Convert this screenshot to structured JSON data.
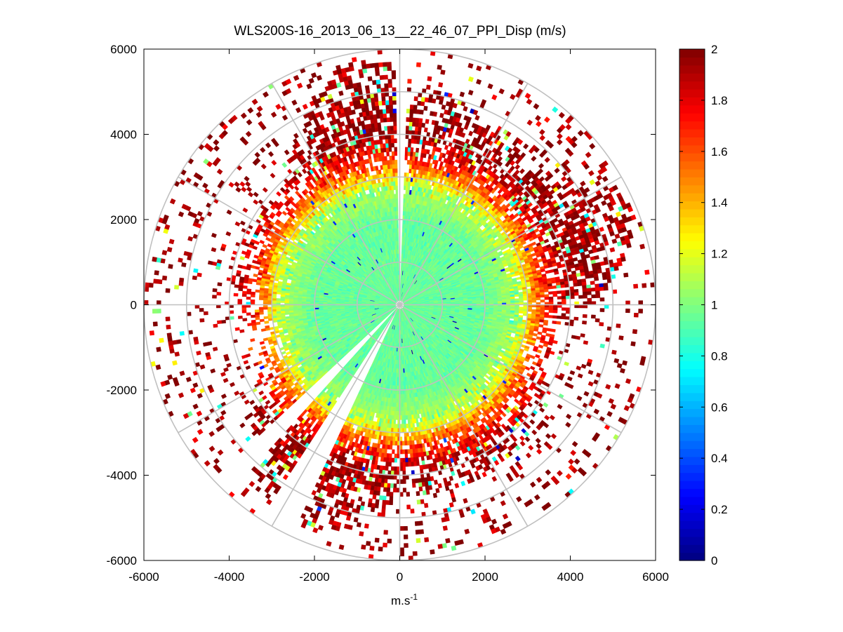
{
  "figure": {
    "title": "WLS200S-16_2013_06_13__22_46_07_PPI_Disp (m/s)",
    "xlabel_base": "m.s",
    "xlabel_exp": "-1"
  },
  "chart_data": {
    "type": "heatmap",
    "subtype": "polar-ppi",
    "title": "WLS200S-16_2013_06_13__22_46_07_PPI_Disp (m/s)",
    "xlabel": "m.s^-1",
    "ylabel": "",
    "xlim": [
      -6000,
      6000
    ],
    "ylim": [
      -6000,
      6000
    ],
    "x_ticks": [
      -6000,
      -4000,
      -2000,
      0,
      2000,
      4000,
      6000
    ],
    "y_ticks": [
      6000,
      4000,
      2000,
      0,
      -2000,
      -4000,
      -6000
    ],
    "x_tick_labels": [
      "-6000",
      "-4000",
      "-2000",
      "0",
      "2000",
      "4000",
      "6000"
    ],
    "y_tick_labels": [
      "6000",
      "4000",
      "2000",
      "0",
      "-2000",
      "-4000",
      "-6000"
    ],
    "max_range": 6000,
    "range_rings": [
      1000,
      2000,
      3000,
      4000,
      5000,
      6000
    ],
    "spokes_deg": [
      0,
      30,
      60,
      90,
      120,
      150,
      180,
      210,
      240,
      270,
      300,
      330
    ],
    "colorbar": {
      "clim": [
        0,
        2
      ],
      "ticks": [
        0,
        0.2,
        0.4,
        0.6,
        0.8,
        1,
        1.2,
        1.4,
        1.6,
        1.8,
        2
      ],
      "tick_labels": [
        "0",
        "0.2",
        "0.4",
        "0.6",
        "0.8",
        "1",
        "1.2",
        "1.4",
        "1.6",
        "1.8",
        "2"
      ],
      "colormap": "jet"
    },
    "value_profile": {
      "range_m": [
        0,
        1000,
        2000,
        2800,
        3300,
        4000,
        5000,
        6000
      ],
      "typical_value": [
        0.95,
        0.95,
        0.95,
        1.1,
        1.6,
        1.95,
        1.95,
        1.95
      ]
    },
    "data_gaps_deg": [
      [
        359,
        2
      ],
      [
        205,
        213
      ],
      [
        222,
        227
      ]
    ]
  }
}
